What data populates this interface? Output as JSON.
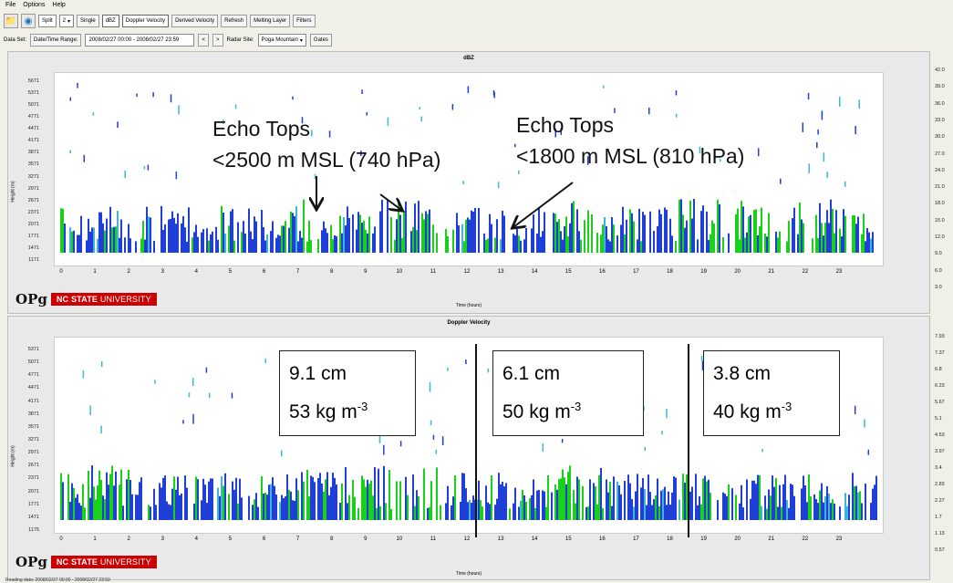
{
  "menu": [
    "File",
    "Options",
    "Help"
  ],
  "toolbar": {
    "split": "Split",
    "split_num": "2",
    "single": "Single",
    "tabs": [
      "dBZ",
      "Doppler Velocity",
      "Derived Velocity",
      "Refresh",
      "Melting Layer",
      "Filters"
    ]
  },
  "controls": {
    "dataset_label": "Data Set:",
    "datetime_button": "Date/Time Range:",
    "datetime_value": "2008/02/27 00:00 - 2008/02/27 23:59",
    "prev": "<",
    "next": ">",
    "radar_label": "Radar Site:",
    "radar_value": "Poga Mountain",
    "gates": "Gates"
  },
  "top_panel": {
    "title": "dBZ",
    "ylabel": "Height (m)",
    "xlabel": "Time (hours)",
    "yticks": [
      "5671",
      "5371",
      "5071",
      "4771",
      "4471",
      "4171",
      "3871",
      "3571",
      "3271",
      "2971",
      "2671",
      "2371",
      "2071",
      "1771",
      "1471",
      "1171"
    ],
    "cbar_ticks": [
      "42.0",
      "39.0",
      "36.0",
      "33.0",
      "30.0",
      "27.0",
      "24.0",
      "21.0",
      "18.0",
      "15.0",
      "12.0",
      "9.0",
      "6.0",
      "3.0"
    ],
    "annotation_left": [
      "Echo Tops",
      "<2500 m MSL (740 hPa)"
    ],
    "annotation_right": [
      "Echo Tops",
      "<1800 m MSL (810 hPa)"
    ]
  },
  "bottom_panel": {
    "title": "Doppler Velocity",
    "ylabel": "Height (m)",
    "xlabel": "Time (hours)",
    "yticks": [
      "5371",
      "5071",
      "4771",
      "4471",
      "4171",
      "3871",
      "3571",
      "3271",
      "2971",
      "2671",
      "2371",
      "2071",
      "1771",
      "1471",
      "1175"
    ],
    "cbar_ticks": [
      "7.93",
      "7.37",
      "6.8",
      "6.23",
      "5.67",
      "5.1",
      "4.53",
      "3.97",
      "3.4",
      "2.83",
      "2.27",
      "1.7",
      "1.13",
      "0.57"
    ],
    "boxes": [
      {
        "line1": "9.1 cm",
        "line2": "53 kg m",
        "sup": "-3"
      },
      {
        "line1": "6.1 cm",
        "line2": "50 kg m",
        "sup": "-3"
      },
      {
        "line1": "3.8 cm",
        "line2": "40 kg m",
        "sup": "-3"
      }
    ]
  },
  "xticks": [
    "0",
    "1",
    "2",
    "3",
    "4",
    "5",
    "6",
    "7",
    "8",
    "9",
    "10",
    "11",
    "12",
    "13",
    "14",
    "15",
    "16",
    "17",
    "18",
    "19",
    "20",
    "21",
    "22",
    "23"
  ],
  "logo": {
    "mark": "OPg",
    "name": "NC STATE",
    "sub": "UNIVERSITY"
  },
  "status": "Reading data: 2008/02/27 00:00 - 2008/02/27 23:59",
  "colors": {
    "green": "#19d119",
    "blue": "#1f3fd6",
    "cyan": "#3fb6d8",
    "ncsu_red": "#cc0000"
  }
}
